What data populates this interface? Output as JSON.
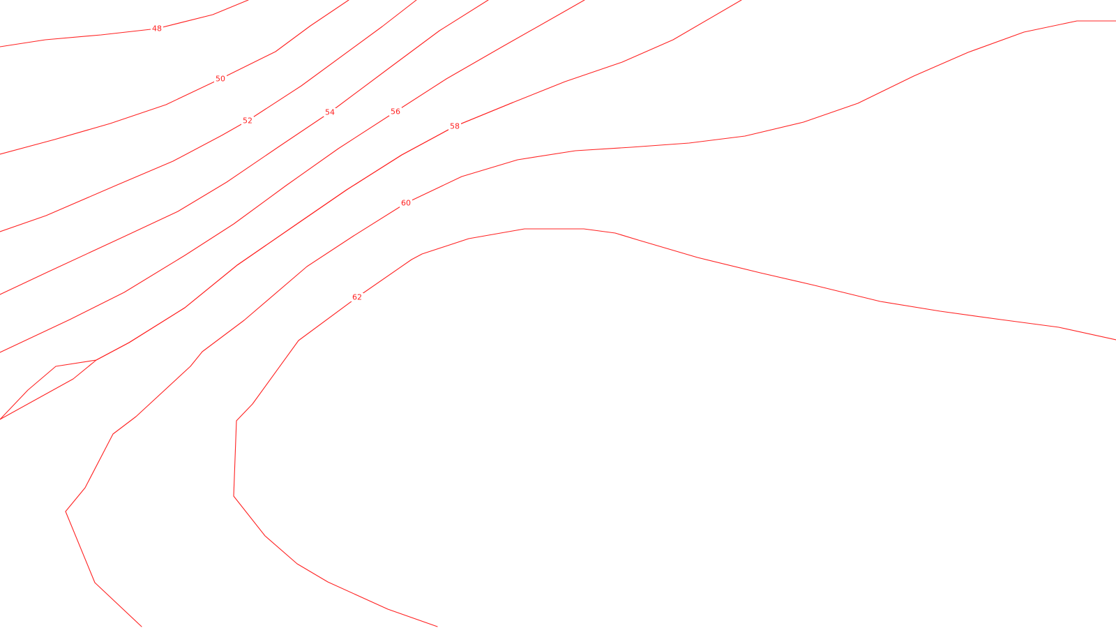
{
  "map": {
    "type": "contour-map",
    "line_color": "#ff2020",
    "background": "#ffffff",
    "contours": [
      {
        "level": 48,
        "label": "48"
      },
      {
        "level": 50,
        "label": "50"
      },
      {
        "level": 52,
        "label": "52"
      },
      {
        "level": 54,
        "label": "54"
      },
      {
        "level": 56,
        "label": "56"
      },
      {
        "level": 58,
        "label": "58"
      },
      {
        "level": 60,
        "label": "60"
      },
      {
        "level": 62,
        "label": "62"
      }
    ]
  }
}
